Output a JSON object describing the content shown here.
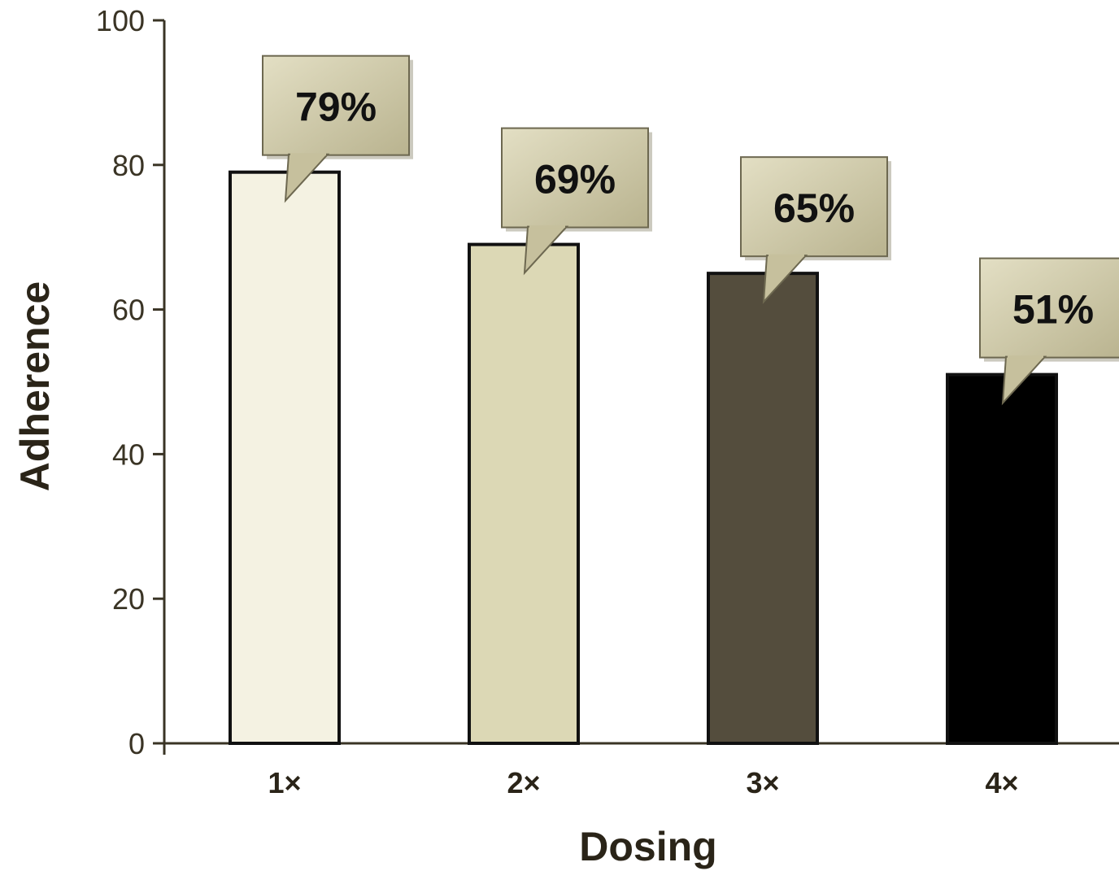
{
  "chart_data": {
    "type": "bar",
    "title": "",
    "xlabel": "Dosing",
    "ylabel": "Adherence",
    "ylim": [
      0,
      100
    ],
    "yticks": [
      "0",
      "20",
      "40",
      "60",
      "80",
      "100"
    ],
    "categories": [
      "1×",
      "2×",
      "3×",
      "4×"
    ],
    "values": [
      79,
      69,
      65,
      51
    ],
    "data_labels": [
      "79%",
      "69%",
      "65%",
      "51%"
    ],
    "bar_colors": [
      "#f4f2e2",
      "#dcd8b5",
      "#544d3d",
      "#000000"
    ],
    "callout_color": "#cfcaa9",
    "axis_color": "#3a3425",
    "grid": false
  }
}
